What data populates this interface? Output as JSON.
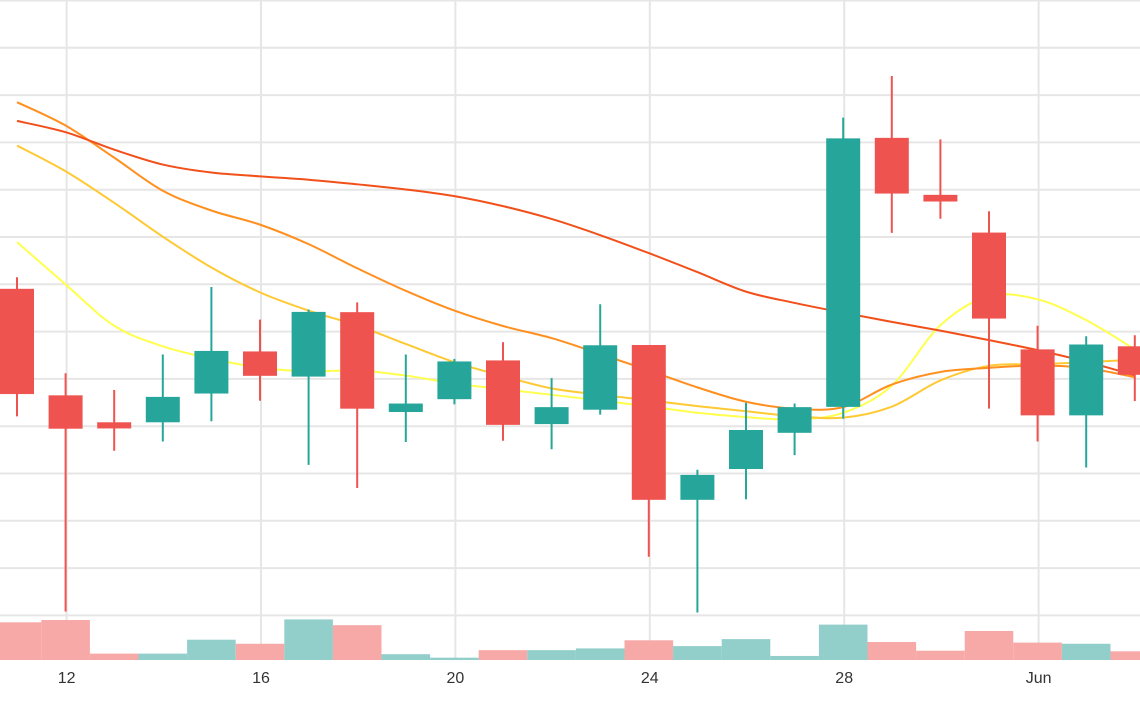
{
  "chart_data": {
    "type": "candlestick",
    "x_tick_labels": [
      {
        "date": "May 12",
        "label": "12"
      },
      {
        "date": "May 16",
        "label": "16"
      },
      {
        "date": "May 20",
        "label": "20"
      },
      {
        "date": "May 24",
        "label": "24"
      },
      {
        "date": "May 28",
        "label": "28"
      },
      {
        "date": "Jun 1",
        "label": "Jun"
      }
    ],
    "grid": true,
    "candles": [
      {
        "date": "May 11",
        "open": 0.7446,
        "high": 0.7491,
        "low": 0.6949,
        "close": 0.7036
      },
      {
        "date": "May 12",
        "open": 0.7031,
        "high": 0.7117,
        "low": 0.6189,
        "close": 0.6901
      },
      {
        "date": "May 13",
        "open": 0.6926,
        "high": 0.7052,
        "low": 0.6815,
        "close": 0.6902
      },
      {
        "date": "May 14",
        "open": 0.6926,
        "high": 0.719,
        "low": 0.6851,
        "close": 0.7025
      },
      {
        "date": "May 15",
        "open": 0.7038,
        "high": 0.7453,
        "low": 0.693,
        "close": 0.7204
      },
      {
        "date": "May 16",
        "open": 0.7202,
        "high": 0.7326,
        "low": 0.701,
        "close": 0.7107
      },
      {
        "date": "May 17",
        "open": 0.7104,
        "high": 0.7365,
        "low": 0.676,
        "close": 0.7356
      },
      {
        "date": "May 18",
        "open": 0.7355,
        "high": 0.7393,
        "low": 0.667,
        "close": 0.6979
      },
      {
        "date": "May 19",
        "open": 0.6966,
        "high": 0.719,
        "low": 0.6849,
        "close": 0.6999
      },
      {
        "date": "May 20",
        "open": 0.7016,
        "high": 0.7173,
        "low": 0.6996,
        "close": 0.7163
      },
      {
        "date": "May 21",
        "open": 0.7167,
        "high": 0.7238,
        "low": 0.6854,
        "close": 0.6916
      },
      {
        "date": "May 22",
        "open": 0.6919,
        "high": 0.7098,
        "low": 0.6821,
        "close": 0.6985
      },
      {
        "date": "May 23",
        "open": 0.6975,
        "high": 0.7386,
        "low": 0.6956,
        "close": 0.7226
      },
      {
        "date": "May 24",
        "open": 0.7227,
        "high": 0.7227,
        "low": 0.6402,
        "close": 0.6624
      },
      {
        "date": "May 25",
        "open": 0.6624,
        "high": 0.6741,
        "low": 0.6185,
        "close": 0.6721
      },
      {
        "date": "May 26",
        "open": 0.6744,
        "high": 0.7002,
        "low": 0.6626,
        "close": 0.6896
      },
      {
        "date": "May 27",
        "open": 0.6885,
        "high": 0.6999,
        "low": 0.6798,
        "close": 0.6985
      },
      {
        "date": "May 28",
        "open": 0.6986,
        "high": 0.8113,
        "low": 0.694,
        "close": 0.8032
      },
      {
        "date": "May 29",
        "open": 0.8034,
        "high": 0.8275,
        "low": 0.7664,
        "close": 0.7817
      },
      {
        "date": "May 30",
        "open": 0.7812,
        "high": 0.8028,
        "low": 0.7719,
        "close": 0.7786
      },
      {
        "date": "May 31",
        "open": 0.7665,
        "high": 0.7748,
        "low": 0.6979,
        "close": 0.733
      },
      {
        "date": "Jun 1",
        "open": 0.721,
        "high": 0.7302,
        "low": 0.6851,
        "close": 0.6953
      },
      {
        "date": "Jun 2",
        "open": 0.6953,
        "high": 0.7261,
        "low": 0.675,
        "close": 0.7229
      },
      {
        "date": "Jun 3",
        "open": 0.7222,
        "high": 0.7265,
        "low": 0.7009,
        "close": 0.7111
      }
    ],
    "volume": [
      {
        "date": "May 11",
        "value": 0.65,
        "direction": "down"
      },
      {
        "date": "May 12",
        "value": 0.69,
        "direction": "down"
      },
      {
        "date": "May 13",
        "value": 0.11,
        "direction": "down"
      },
      {
        "date": "May 14",
        "value": 0.11,
        "direction": "up"
      },
      {
        "date": "May 15",
        "value": 0.35,
        "direction": "up"
      },
      {
        "date": "May 16",
        "value": 0.28,
        "direction": "down"
      },
      {
        "date": "May 17",
        "value": 0.7,
        "direction": "up"
      },
      {
        "date": "May 18",
        "value": 0.6,
        "direction": "down"
      },
      {
        "date": "May 19",
        "value": 0.1,
        "direction": "up"
      },
      {
        "date": "May 20",
        "value": 0.04,
        "direction": "up"
      },
      {
        "date": "May 21",
        "value": 0.17,
        "direction": "down"
      },
      {
        "date": "May 22",
        "value": 0.17,
        "direction": "up"
      },
      {
        "date": "May 23",
        "value": 0.2,
        "direction": "up"
      },
      {
        "date": "May 24",
        "value": 0.34,
        "direction": "down"
      },
      {
        "date": "May 25",
        "value": 0.24,
        "direction": "up"
      },
      {
        "date": "May 26",
        "value": 0.36,
        "direction": "up"
      },
      {
        "date": "May 27",
        "value": 0.07,
        "direction": "up"
      },
      {
        "date": "May 28",
        "value": 0.61,
        "direction": "up"
      },
      {
        "date": "May 29",
        "value": 0.31,
        "direction": "down"
      },
      {
        "date": "May 30",
        "value": 0.16,
        "direction": "down"
      },
      {
        "date": "May 31",
        "value": 0.5,
        "direction": "down"
      },
      {
        "date": "Jun 1",
        "value": 0.3,
        "direction": "down"
      },
      {
        "date": "Jun 2",
        "value": 0.28,
        "direction": "up"
      },
      {
        "date": "Jun 3",
        "value": 0.15,
        "direction": "down"
      }
    ],
    "moving_averages": [
      {
        "color": "#ffff4d",
        "values": [
          0.7628,
          0.7463,
          0.7302,
          0.7222,
          0.7174,
          0.7139,
          0.7124,
          0.7128,
          0.7108,
          0.7077,
          0.7055,
          0.7033,
          0.7011,
          0.6988,
          0.6963,
          0.6946,
          0.6937,
          0.6963,
          0.7069,
          0.7304,
          0.7417,
          0.7405,
          0.7324,
          0.721
        ]
      },
      {
        "color": "#ffc933",
        "values": [
          0.8004,
          0.7904,
          0.7781,
          0.7649,
          0.7529,
          0.7432,
          0.7361,
          0.7303,
          0.7231,
          0.716,
          0.7106,
          0.7058,
          0.7033,
          0.7012,
          0.6989,
          0.6969,
          0.695,
          0.6944,
          0.6987,
          0.7089,
          0.7146,
          0.7152,
          0.716,
          0.717
        ]
      },
      {
        "color": "#ff8f1f",
        "values": [
          0.8173,
          0.8082,
          0.7957,
          0.7828,
          0.7751,
          0.7696,
          0.762,
          0.7526,
          0.7438,
          0.7361,
          0.7301,
          0.7254,
          0.7192,
          0.7128,
          0.7062,
          0.7006,
          0.6979,
          0.6985,
          0.7073,
          0.7122,
          0.7138,
          0.7147,
          0.7137,
          0.7102
        ]
      },
      {
        "color": "#f2501a",
        "values": [
          0.81,
          0.8056,
          0.7988,
          0.793,
          0.7899,
          0.7884,
          0.7871,
          0.7853,
          0.7833,
          0.7807,
          0.7768,
          0.7718,
          0.7655,
          0.7585,
          0.7511,
          0.7435,
          0.7391,
          0.7353,
          0.7317,
          0.7283,
          0.7246,
          0.7207,
          0.7162,
          0.7109
        ]
      }
    ],
    "colors": {
      "up": "#26a69a",
      "down": "#ef5350",
      "volume_up": "#92cfcb",
      "volume_down": "#f7a9a7",
      "grid": "#e6e6e6",
      "axis_text": "#333333"
    }
  }
}
